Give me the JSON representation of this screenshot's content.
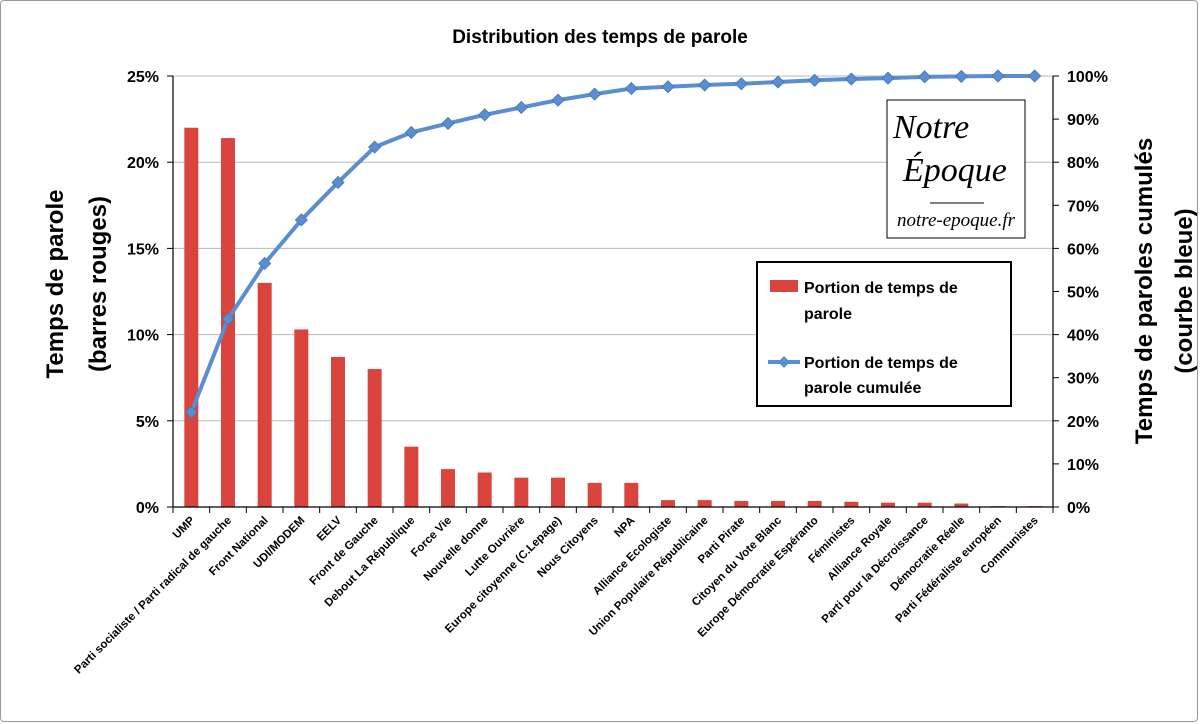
{
  "chart_data": {
    "type": "bar+line",
    "title": "Distribution des temps de parole",
    "categories": [
      "UMP",
      "Parti socialiste / Parti radical de gauche",
      "Front National",
      "UDI/MODEM",
      "EELV",
      "Front de Gauche",
      "Debout La République",
      "Force Vie",
      "Nouvelle donne",
      "Lutte Ouvrière",
      "Europe citoyenne (C.Lepage)",
      "Nous Citoyens",
      "NPA",
      "Alliance Ecologiste",
      "Union Populaire Républicaine",
      "Parti Pirate",
      "Citoyen du Vote Blanc",
      "Europe Démocratie Espéranto",
      "Féministes",
      "Alliance Royale",
      "Parti pour la Décroissance",
      "Démocratie Réelle",
      "Parti Fédéraliste européen",
      "Communistes"
    ],
    "series": [
      {
        "name": "Portion de temps de parole",
        "type": "bar",
        "axis": "left",
        "color": "#d9443c",
        "values": [
          22.0,
          21.4,
          13.0,
          10.3,
          8.7,
          8.0,
          3.5,
          2.2,
          2.0,
          1.7,
          1.7,
          1.4,
          1.4,
          0.4,
          0.4,
          0.35,
          0.35,
          0.35,
          0.3,
          0.25,
          0.25,
          0.2,
          0.05,
          0.05
        ]
      },
      {
        "name": "Portion de temps de parole cumulée",
        "type": "line",
        "axis": "right",
        "color": "#5b8ed0",
        "values": [
          22.0,
          43.6,
          56.5,
          66.6,
          75.3,
          83.5,
          86.9,
          89.0,
          91.0,
          92.7,
          94.4,
          95.8,
          97.1,
          97.5,
          97.9,
          98.2,
          98.6,
          99.0,
          99.3,
          99.5,
          99.8,
          99.9,
          100.0,
          100.0
        ]
      }
    ],
    "y_left": {
      "label_line1": "Temps de parole",
      "label_line2": "(barres rouges)",
      "ylim": [
        0,
        25
      ],
      "ticks": [
        "0%",
        "5%",
        "10%",
        "15%",
        "20%",
        "25%"
      ]
    },
    "y_right": {
      "label_line1": "Temps de paroles cumulés",
      "label_line2": "(courbe bleue)",
      "ylim": [
        0,
        100
      ],
      "ticks": [
        "0%",
        "10%",
        "20%",
        "30%",
        "40%",
        "50%",
        "60%",
        "70%",
        "80%",
        "90%",
        "100%"
      ]
    },
    "grid": true,
    "legend": {
      "position": "right",
      "bar_label_line1": "Portion de temps de",
      "bar_label_line2": "parole",
      "line_label_line1": "Portion de temps de",
      "line_label_line2": "parole cumulée"
    }
  },
  "watermark": {
    "line1": "Notre",
    "line2": "Époque",
    "url": "notre-epoque.fr"
  },
  "colors": {
    "bar": "#d9443c",
    "line": "#5b8ed0",
    "grid": "#b8b8b8"
  }
}
